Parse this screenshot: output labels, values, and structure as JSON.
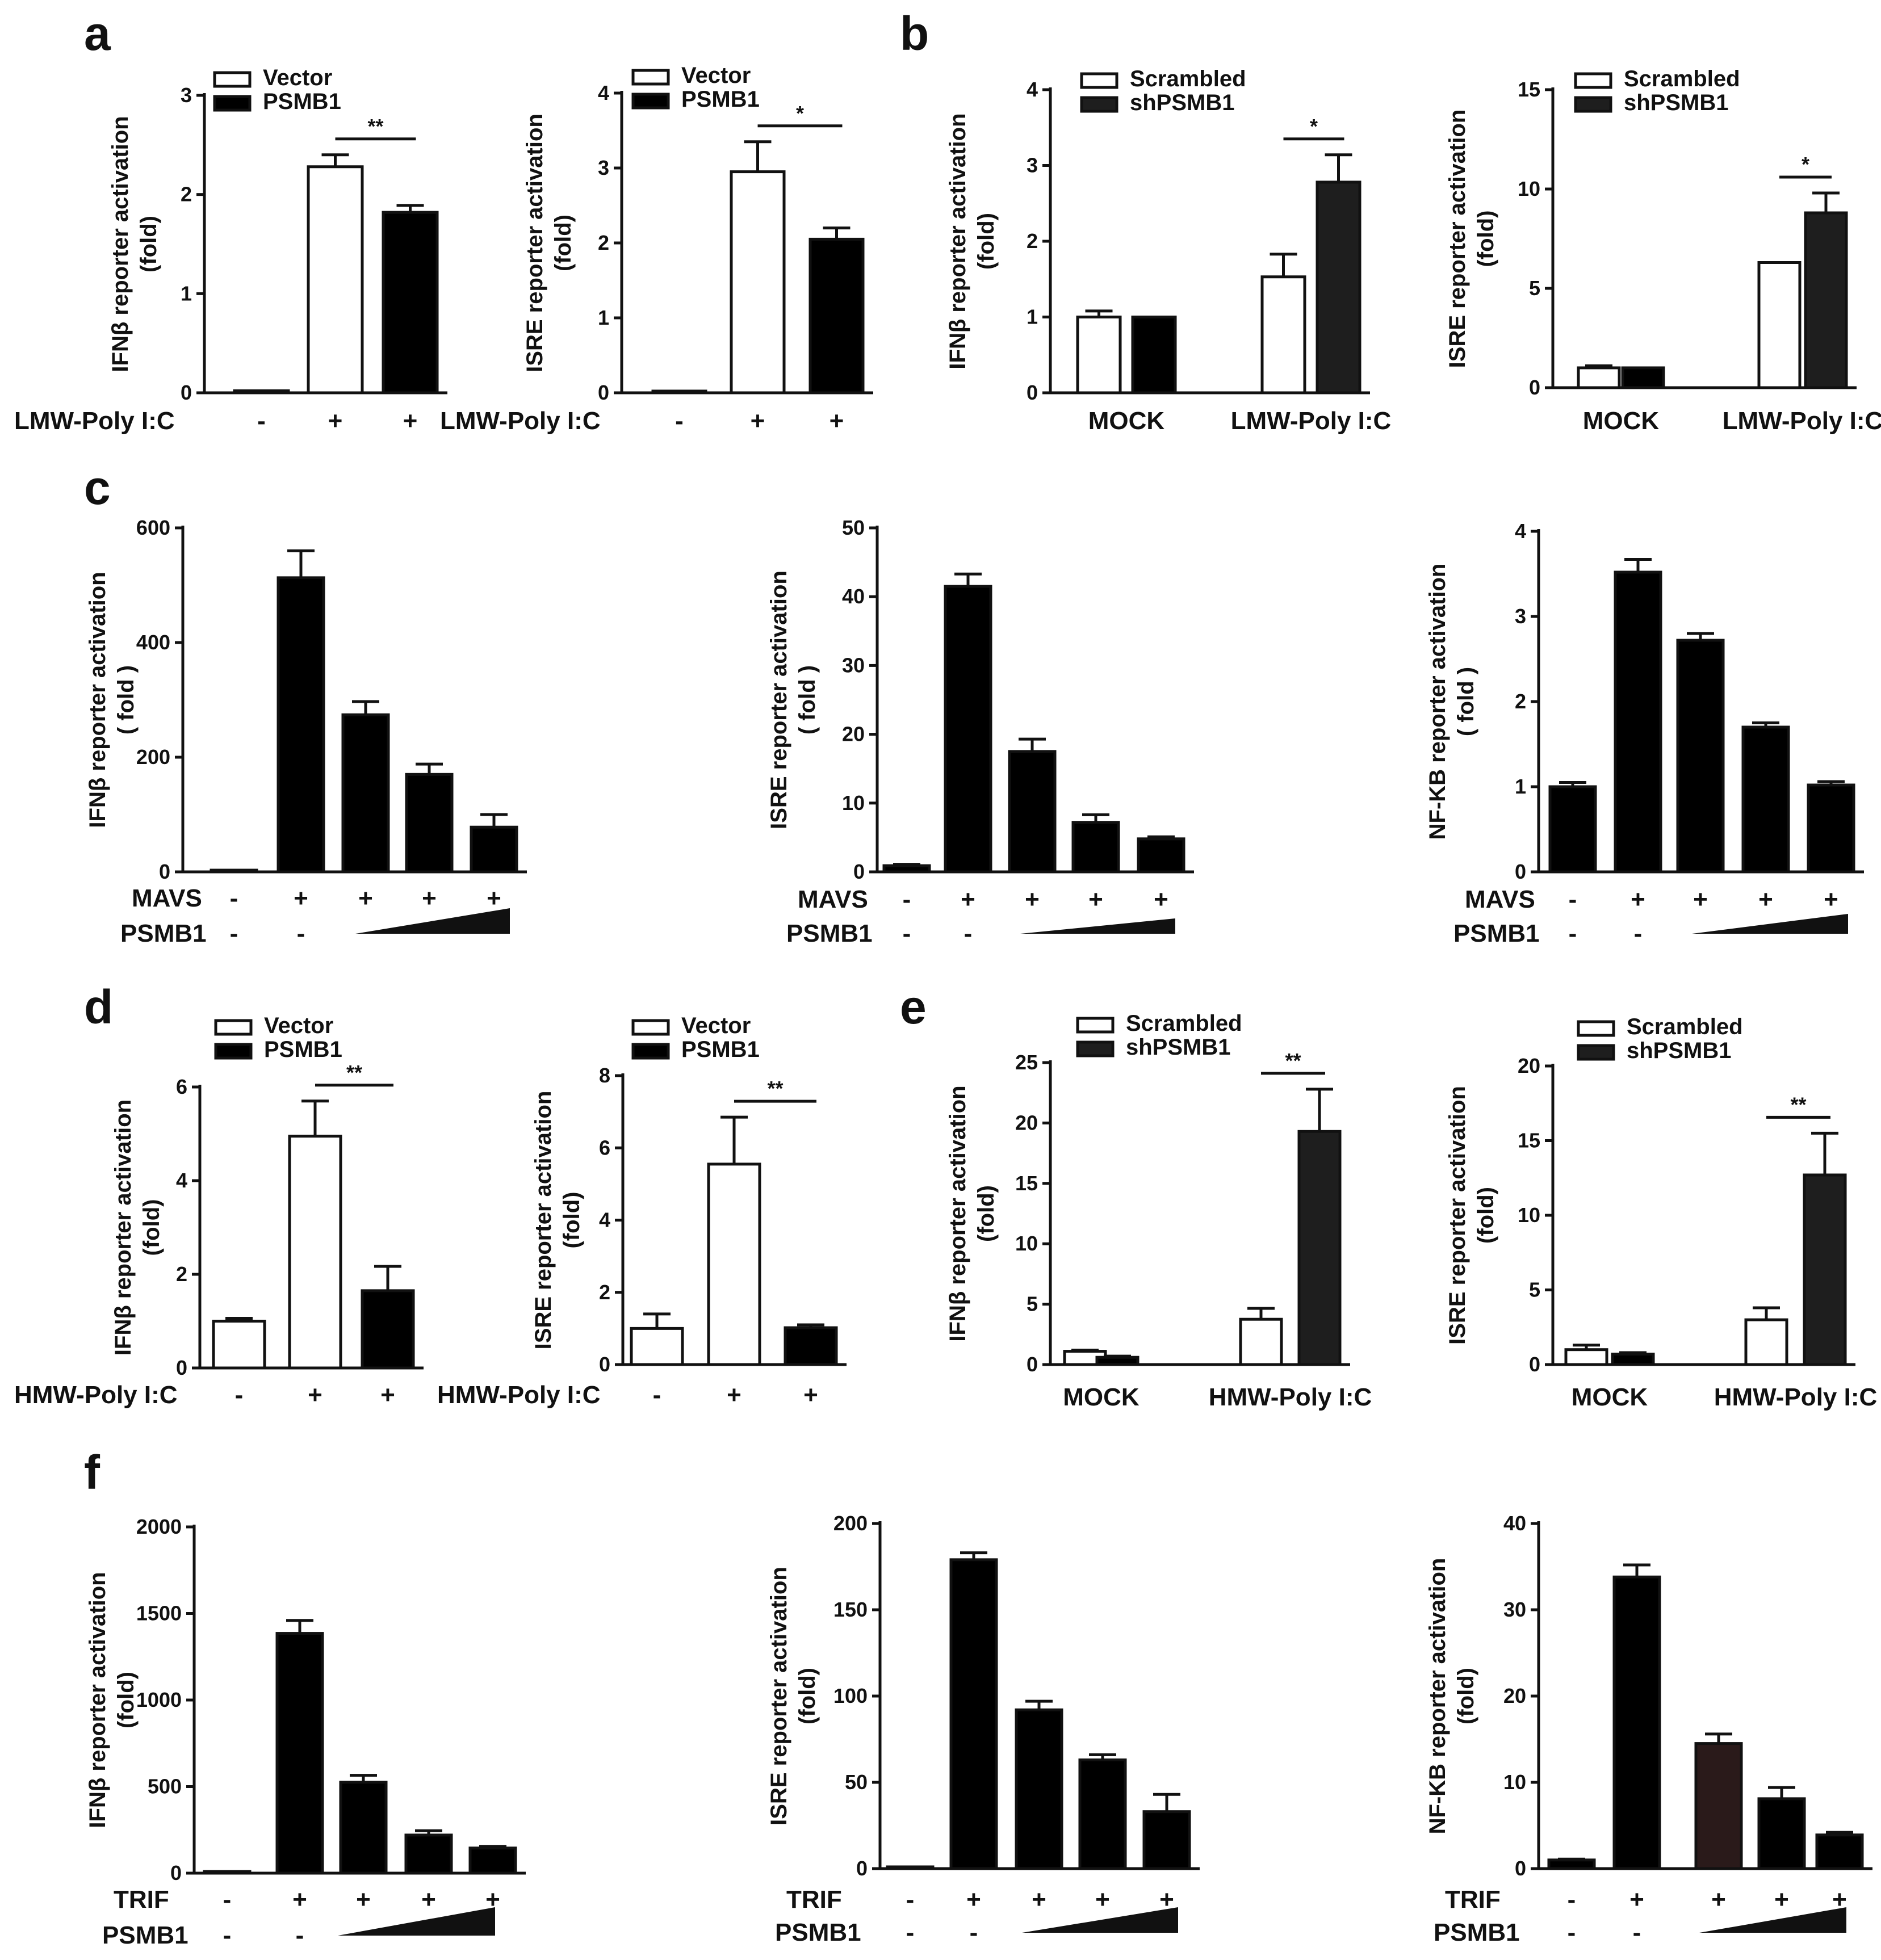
{
  "chart_data": [
    {
      "id": "a1",
      "panel": "a",
      "type": "bar",
      "ylabel": [
        "IFNβ reporter activation",
        "(fold)"
      ],
      "ylim": [
        0,
        3
      ],
      "yticks": [
        0,
        1,
        2,
        3
      ],
      "x_condition_label": "LMW-Poly I:C",
      "x_signs": [
        "-",
        "+",
        "+"
      ],
      "legend": [
        {
          "name": "Vector",
          "color": "#ffffff"
        },
        {
          "name": "PSMB1",
          "color": "#000000"
        }
      ],
      "bars": [
        {
          "value": 0.02,
          "error": 0,
          "color": "#ffffff"
        },
        {
          "value": 2.28,
          "error": 0.12,
          "color": "#ffffff"
        },
        {
          "value": 1.82,
          "error": 0.07,
          "color": "#000000"
        }
      ],
      "significance": [
        {
          "from": 1,
          "to": 2,
          "label": "**"
        }
      ]
    },
    {
      "id": "a2",
      "type": "bar",
      "ylabel": [
        "ISRE reporter activation",
        "(fold)"
      ],
      "ylim": [
        0,
        4
      ],
      "yticks": [
        0,
        1,
        2,
        3,
        4
      ],
      "x_condition_label": "LMW-Poly I:C",
      "x_signs": [
        "-",
        "+",
        "+"
      ],
      "legend": [
        {
          "name": "Vector",
          "color": "#ffffff"
        },
        {
          "name": "PSMB1",
          "color": "#000000"
        }
      ],
      "bars": [
        {
          "value": 0,
          "error": 0,
          "color": "#ffffff"
        },
        {
          "value": 2.95,
          "error": 0.4,
          "color": "#ffffff"
        },
        {
          "value": 2.05,
          "error": 0.15,
          "color": "#000000"
        }
      ],
      "significance": [
        {
          "from": 1,
          "to": 2,
          "label": "*"
        }
      ]
    },
    {
      "id": "b1",
      "panel": "b",
      "type": "bar",
      "ylabel": [
        "IFNβ reporter activation",
        "(fold)"
      ],
      "ylim": [
        0,
        4
      ],
      "yticks": [
        0,
        1,
        2,
        3,
        4
      ],
      "group_labels": [
        "MOCK",
        "LMW-Poly I:C"
      ],
      "legend": [
        {
          "name": "Scrambled",
          "color": "#ffffff"
        },
        {
          "name": "shPSMB1",
          "color": "#1e1e1e"
        }
      ],
      "bars": [
        {
          "value": 1.0,
          "error": 0.08,
          "color": "#ffffff"
        },
        {
          "value": 1.0,
          "error": 0,
          "color": "#000000"
        },
        {
          "value": 1.53,
          "error": 0.3,
          "color": "#ffffff"
        },
        {
          "value": 2.78,
          "error": 0.36,
          "color": "#1e1e1e"
        }
      ],
      "significance": [
        {
          "from": 2,
          "to": 3,
          "label": "*"
        }
      ]
    },
    {
      "id": "b2",
      "type": "bar",
      "ylabel": [
        "ISRE reporter activation",
        "(fold)"
      ],
      "ylim": [
        0,
        15
      ],
      "yticks": [
        0,
        5,
        10,
        15
      ],
      "group_labels": [
        "MOCK",
        "LMW-Poly I:C"
      ],
      "legend": [
        {
          "name": "Scrambled",
          "color": "#ffffff"
        },
        {
          "name": "shPSMB1",
          "color": "#1e1e1e"
        }
      ],
      "bars": [
        {
          "value": 1.0,
          "error": 0.1,
          "color": "#ffffff"
        },
        {
          "value": 1.0,
          "error": 0,
          "color": "#000000"
        },
        {
          "value": 6.3,
          "error": 0,
          "color": "#ffffff"
        },
        {
          "value": 8.8,
          "error": 1.0,
          "color": "#1e1e1e"
        }
      ],
      "significance": [
        {
          "from": 2,
          "to": 3,
          "label": "*"
        }
      ]
    },
    {
      "id": "c1",
      "panel": "c",
      "type": "bar",
      "ylabel": [
        "IFNβ reporter activation",
        "( fold )"
      ],
      "ylim": [
        0,
        600
      ],
      "yticks": [
        0,
        200,
        400,
        600
      ],
      "row1_label": "MAVS",
      "row1_signs": [
        "-",
        "+",
        "+",
        "+",
        "+"
      ],
      "row2_label": "PSMB1",
      "row2_signs": [
        "-",
        "-"
      ],
      "wedge_from": 2,
      "bars": [
        {
          "value": 2,
          "error": 0,
          "color": "#000000"
        },
        {
          "value": 513,
          "error": 47,
          "color": "#000000"
        },
        {
          "value": 274,
          "error": 23,
          "color": "#000000"
        },
        {
          "value": 170,
          "error": 18,
          "color": "#000000"
        },
        {
          "value": 78,
          "error": 22,
          "color": "#000000"
        }
      ]
    },
    {
      "id": "c2",
      "type": "bar",
      "ylabel": [
        "ISRE reporter activation",
        "( fold )"
      ],
      "ylim": [
        0,
        50
      ],
      "yticks": [
        0,
        10,
        20,
        30,
        40,
        50
      ],
      "row1_label": "MAVS",
      "row1_signs": [
        "-",
        "+",
        "+",
        "+",
        "+"
      ],
      "row2_label": "PSMB1",
      "row2_signs": [
        "-",
        "-"
      ],
      "wedge_from": 2,
      "bars": [
        {
          "value": 0.9,
          "error": 0.2,
          "color": "#000000"
        },
        {
          "value": 41.5,
          "error": 1.8,
          "color": "#000000"
        },
        {
          "value": 17.5,
          "error": 1.8,
          "color": "#000000"
        },
        {
          "value": 7.2,
          "error": 1.1,
          "color": "#000000"
        },
        {
          "value": 4.8,
          "error": 0.3,
          "color": "#000000"
        }
      ]
    },
    {
      "id": "c3",
      "type": "bar",
      "ylabel": [
        "NF-KB reporter activation",
        "( fold )"
      ],
      "ylim": [
        0,
        4
      ],
      "yticks": [
        0,
        1,
        2,
        3,
        4
      ],
      "row1_label": "MAVS",
      "row1_signs": [
        "-",
        "+",
        "+",
        "+",
        "+"
      ],
      "row2_label": "PSMB1",
      "row2_signs": [
        "-",
        "-"
      ],
      "wedge_from": 2,
      "bars": [
        {
          "value": 1.0,
          "error": 0.05,
          "color": "#000000"
        },
        {
          "value": 3.52,
          "error": 0.15,
          "color": "#000000"
        },
        {
          "value": 2.72,
          "error": 0.08,
          "color": "#000000"
        },
        {
          "value": 1.7,
          "error": 0.05,
          "color": "#000000"
        },
        {
          "value": 1.02,
          "error": 0.04,
          "color": "#000000"
        }
      ]
    },
    {
      "id": "d1",
      "panel": "d",
      "type": "bar",
      "ylabel": [
        "IFNβ reporter activation",
        "(fold)"
      ],
      "ylim": [
        0,
        6
      ],
      "yticks": [
        0,
        2,
        4,
        6
      ],
      "x_condition_label": "HMW-Poly I:C",
      "x_signs": [
        "-",
        "+",
        "+"
      ],
      "legend": [
        {
          "name": "Vector",
          "color": "#ffffff"
        },
        {
          "name": "PSMB1",
          "color": "#000000"
        }
      ],
      "bars": [
        {
          "value": 1.0,
          "error": 0.06,
          "color": "#ffffff"
        },
        {
          "value": 4.95,
          "error": 0.75,
          "color": "#ffffff"
        },
        {
          "value": 1.65,
          "error": 0.52,
          "color": "#000000"
        }
      ],
      "significance": [
        {
          "from": 1,
          "to": 2,
          "label": "**"
        }
      ]
    },
    {
      "id": "d2",
      "type": "bar",
      "ylabel": [
        "ISRE reporter activation",
        "(fold)"
      ],
      "ylim": [
        0,
        8
      ],
      "yticks": [
        0,
        2,
        4,
        6,
        8
      ],
      "x_condition_label": "HMW-Poly I:C",
      "x_signs": [
        "-",
        "+",
        "+"
      ],
      "legend": [
        {
          "name": "Vector",
          "color": "#ffffff"
        },
        {
          "name": "PSMB1",
          "color": "#000000"
        }
      ],
      "bars": [
        {
          "value": 1.0,
          "error": 0.4,
          "color": "#ffffff"
        },
        {
          "value": 5.55,
          "error": 1.3,
          "color": "#ffffff"
        },
        {
          "value": 1.02,
          "error": 0.08,
          "color": "#000000"
        }
      ],
      "significance": [
        {
          "from": 1,
          "to": 2,
          "label": "**"
        }
      ]
    },
    {
      "id": "e1",
      "panel": "e",
      "type": "bar",
      "ylabel": [
        "IFNβ reporter activation",
        "(fold)"
      ],
      "ylim": [
        0,
        25
      ],
      "yticks": [
        0,
        5,
        10,
        15,
        20,
        25
      ],
      "group_labels": [
        "MOCK",
        "HMW-Poly I:C"
      ],
      "legend": [
        {
          "name": "Scrambled",
          "color": "#ffffff"
        },
        {
          "name": "shPSMB1",
          "color": "#1e1e1e"
        }
      ],
      "bars": [
        {
          "value": 1.1,
          "error": 0.1,
          "color": "#ffffff"
        },
        {
          "value": 0.6,
          "error": 0.1,
          "color": "#000000"
        },
        {
          "value": 3.75,
          "error": 0.9,
          "color": "#ffffff"
        },
        {
          "value": 19.3,
          "error": 3.5,
          "color": "#1e1e1e"
        }
      ],
      "significance": [
        {
          "from": 2,
          "to": 3,
          "label": "**"
        }
      ]
    },
    {
      "id": "e2",
      "type": "bar",
      "ylabel": [
        "ISRE reporter activation",
        "(fold)"
      ],
      "ylim": [
        0,
        20
      ],
      "yticks": [
        0,
        5,
        10,
        15,
        20
      ],
      "group_labels": [
        "MOCK",
        "HMW-Poly I:C"
      ],
      "legend": [
        {
          "name": "Scrambled",
          "color": "#ffffff"
        },
        {
          "name": "shPSMB1",
          "color": "#1e1e1e"
        }
      ],
      "bars": [
        {
          "value": 1.0,
          "error": 0.3,
          "color": "#ffffff"
        },
        {
          "value": 0.7,
          "error": 0.1,
          "color": "#000000"
        },
        {
          "value": 3.0,
          "error": 0.8,
          "color": "#ffffff"
        },
        {
          "value": 12.7,
          "error": 2.8,
          "color": "#1e1e1e"
        }
      ],
      "significance": [
        {
          "from": 2,
          "to": 3,
          "label": "**"
        }
      ]
    },
    {
      "id": "f1",
      "panel": "f",
      "type": "bar",
      "ylabel": [
        "IFNβ reporter activation",
        "(fold)"
      ],
      "ylim": [
        0,
        2000
      ],
      "yticks": [
        0,
        500,
        1000,
        1500,
        2000
      ],
      "row1_label": "TRIF",
      "row1_signs": [
        "-",
        "+",
        "+",
        "+",
        "+"
      ],
      "row2_label": "PSMB1",
      "row2_signs": [
        "-",
        "-"
      ],
      "wedge_from": 2,
      "bars": [
        {
          "value": 0,
          "error": 0,
          "color": "#000000"
        },
        {
          "value": 1385,
          "error": 75,
          "color": "#000000"
        },
        {
          "value": 525,
          "error": 40,
          "color": "#000000"
        },
        {
          "value": 220,
          "error": 25,
          "color": "#000000"
        },
        {
          "value": 145,
          "error": 10,
          "color": "#000000"
        }
      ]
    },
    {
      "id": "f2",
      "type": "bar",
      "ylabel": [
        "ISRE reporter activation",
        "(fold)"
      ],
      "ylim": [
        0,
        200
      ],
      "yticks": [
        0,
        50,
        100,
        150,
        200
      ],
      "row1_label": "TRIF",
      "row1_signs": [
        "-",
        "+",
        "+",
        "+",
        "+"
      ],
      "row2_label": "PSMB1",
      "row2_signs": [
        "-",
        "-"
      ],
      "wedge_from": 2,
      "bars": [
        {
          "value": 1,
          "error": 0,
          "color": "#000000"
        },
        {
          "value": 179,
          "error": 4,
          "color": "#000000"
        },
        {
          "value": 92,
          "error": 5,
          "color": "#000000"
        },
        {
          "value": 63,
          "error": 3,
          "color": "#000000"
        },
        {
          "value": 33,
          "error": 10,
          "color": "#000000"
        }
      ]
    },
    {
      "id": "f3",
      "type": "bar",
      "ylabel": [
        "NF-KB reporter activation",
        "(fold)"
      ],
      "ylim": [
        0,
        40
      ],
      "yticks": [
        0,
        10,
        20,
        30,
        40
      ],
      "row1_label": "TRIF",
      "row1_signs": [
        "-",
        "+",
        "+",
        "+",
        "+"
      ],
      "row2_label": "PSMB1",
      "row2_signs": [
        "-",
        "-"
      ],
      "wedge_from": 2,
      "bars": [
        {
          "value": 1.0,
          "error": 0.1,
          "color": "#000000"
        },
        {
          "value": 33.8,
          "error": 1.4,
          "color": "#000000"
        },
        {
          "value": 14.5,
          "error": 1.1,
          "color": "#2a1a1a"
        },
        {
          "value": 8.1,
          "error": 1.3,
          "color": "#000000"
        },
        {
          "value": 3.9,
          "error": 0.3,
          "color": "#000000"
        }
      ]
    }
  ]
}
